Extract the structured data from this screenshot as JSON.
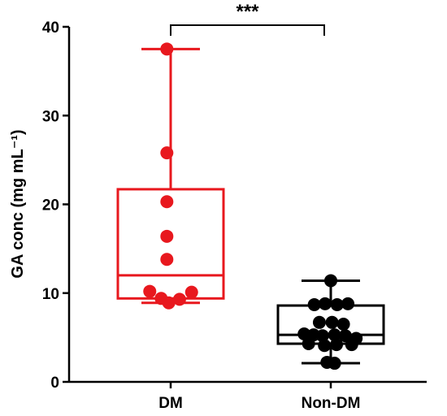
{
  "chart_data": {
    "type": "box",
    "categories": [
      "DM",
      "Non-DM"
    ],
    "ylabel": "GA conc (mg mL⁻¹)",
    "ylim": [
      0,
      40
    ],
    "yticks": [
      0,
      10,
      20,
      30,
      40
    ],
    "grid": false,
    "significance": {
      "label": "***",
      "between": [
        "DM",
        "Non-DM"
      ]
    },
    "colors": {
      "DM": "#e8181e",
      "Non-DM": "#000000"
    },
    "series": [
      {
        "category": "DM",
        "min": 8.9,
        "q1": 9.4,
        "median": 12.0,
        "q3": 21.7,
        "max": 37.5,
        "points": [
          {
            "x": -0.06,
            "y": 37.5
          },
          {
            "x": -0.06,
            "y": 25.8
          },
          {
            "x": -0.06,
            "y": 20.3
          },
          {
            "x": -0.06,
            "y": 16.4
          },
          {
            "x": -0.06,
            "y": 13.8
          },
          {
            "x": -0.33,
            "y": 10.2
          },
          {
            "x": 0.33,
            "y": 10.1
          },
          {
            "x": -0.15,
            "y": 9.4
          },
          {
            "x": 0.14,
            "y": 9.3
          },
          {
            "x": -0.03,
            "y": 8.9
          }
        ]
      },
      {
        "category": "Non-DM",
        "min": 2.1,
        "q1": 4.3,
        "median": 5.3,
        "q3": 8.6,
        "max": 11.4,
        "points": [
          {
            "x": 0.0,
            "y": 11.4
          },
          {
            "x": -0.26,
            "y": 8.7
          },
          {
            "x": -0.09,
            "y": 8.8
          },
          {
            "x": 0.1,
            "y": 8.7
          },
          {
            "x": 0.27,
            "y": 8.8
          },
          {
            "x": -0.18,
            "y": 6.7
          },
          {
            "x": 0.02,
            "y": 6.7
          },
          {
            "x": 0.2,
            "y": 6.5
          },
          {
            "x": -0.42,
            "y": 5.4
          },
          {
            "x": -0.27,
            "y": 5.3
          },
          {
            "x": -0.13,
            "y": 5.2
          },
          {
            "x": 0.06,
            "y": 5.3
          },
          {
            "x": 0.23,
            "y": 5.2
          },
          {
            "x": 0.4,
            "y": 4.9
          },
          {
            "x": -0.35,
            "y": 4.3
          },
          {
            "x": -0.1,
            "y": 4.1
          },
          {
            "x": 0.09,
            "y": 4.2
          },
          {
            "x": 0.33,
            "y": 4.2
          },
          {
            "x": -0.06,
            "y": 2.2
          },
          {
            "x": 0.06,
            "y": 2.1
          }
        ]
      }
    ]
  }
}
